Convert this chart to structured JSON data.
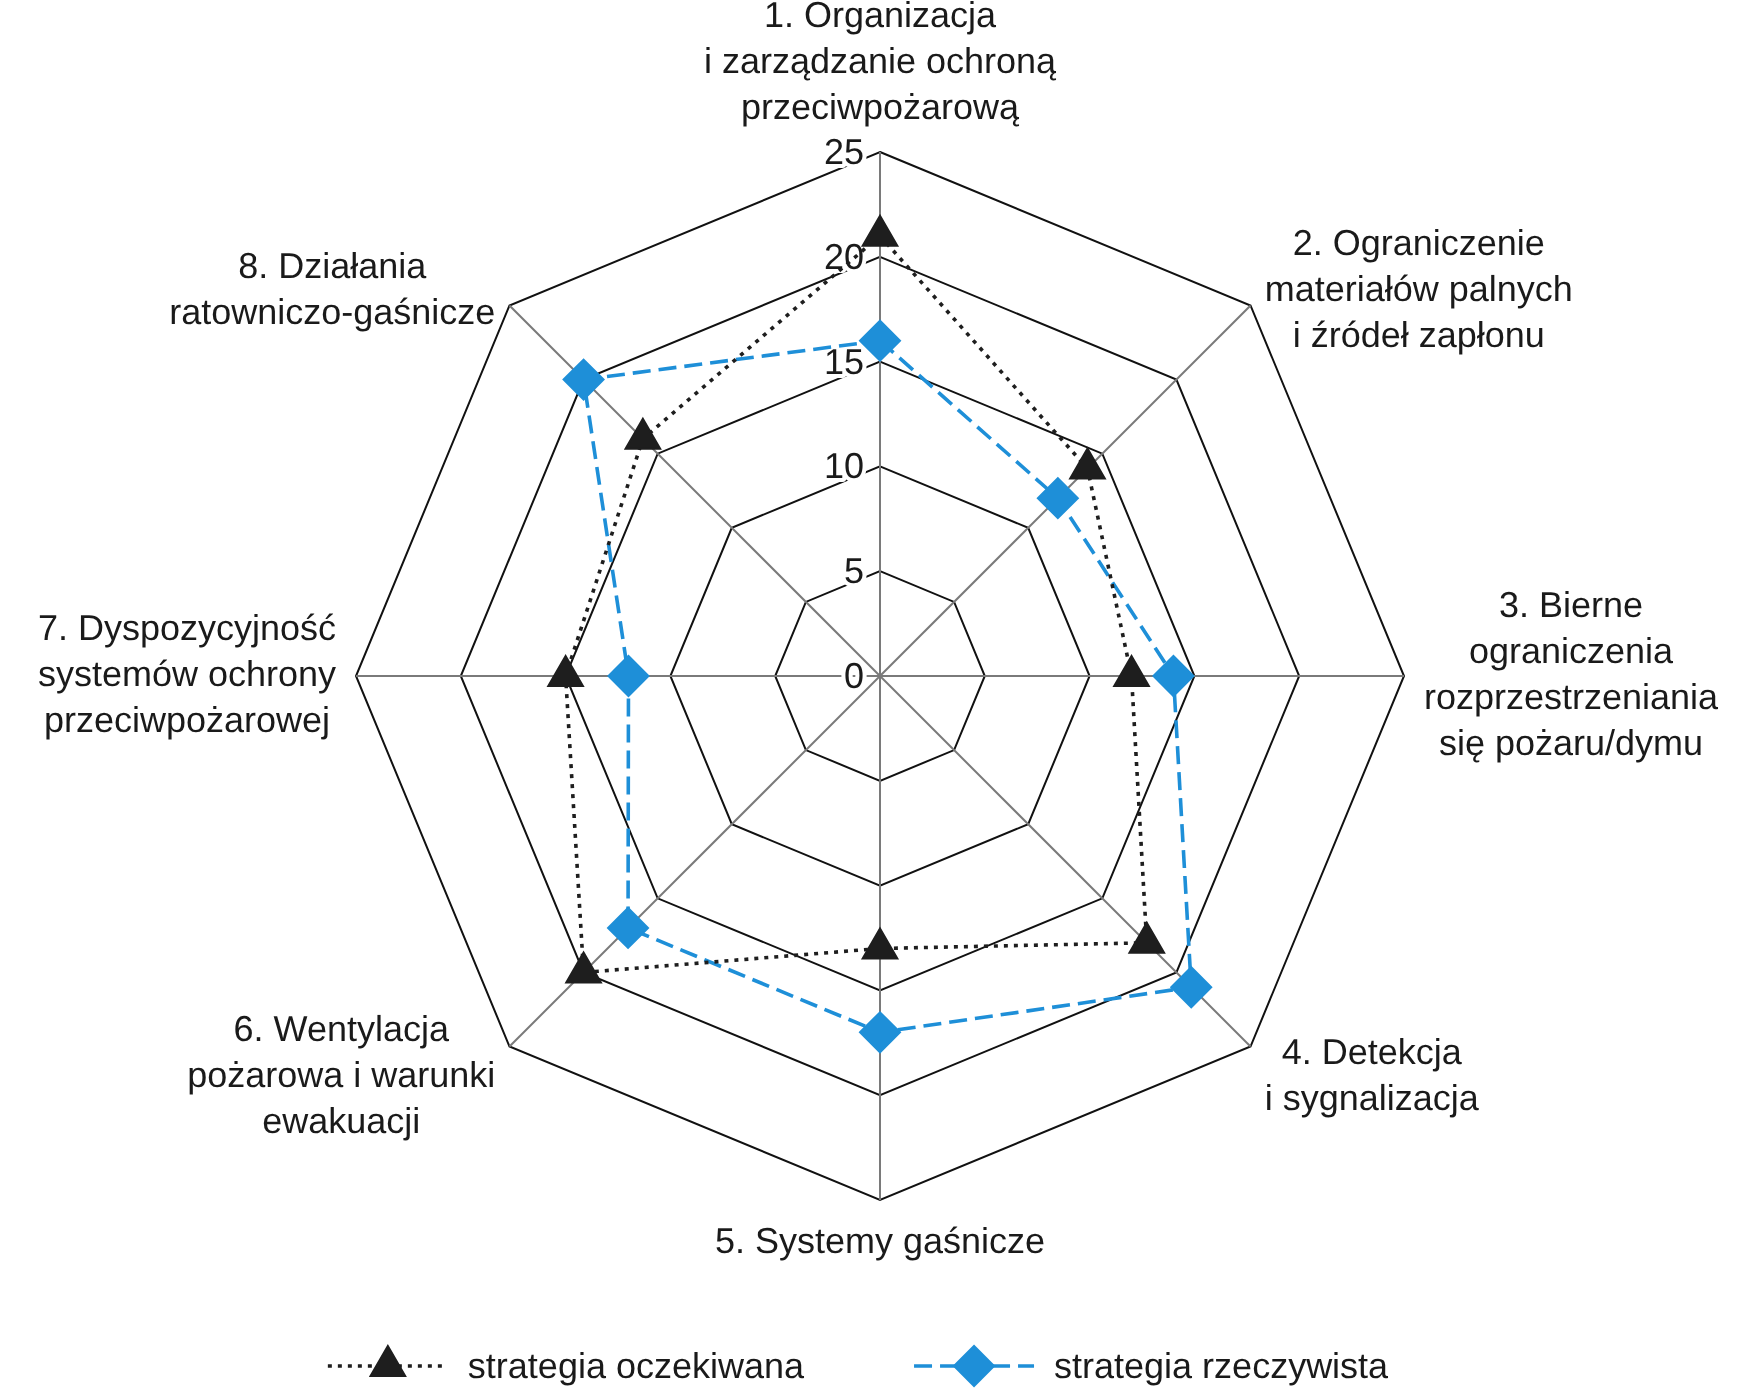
{
  "chart_data": {
    "type": "radar",
    "categories": [
      "1. Organizacja\ni zarządzanie ochroną\nprzeciwpożarową",
      "2. Ograniczenie\nmateriałów palnych\ni źródeł zapłonu",
      "3. Bierne\nograniczenia\nrozprzestrzeniania\nsię pożaru/dymu",
      "4. Detekcja\ni sygnalizacja",
      "5. Systemy gaśnicze",
      "6. Wentylacja\npożarowa i warunki\newakuacji",
      "7. Dyspozycyjność\nsystemów ochrony\nprzeciwpożarowej",
      "8. Działania\nratowniczo-gaśnicze"
    ],
    "series": [
      {
        "name": "strategia oczekiwana",
        "color": "#1e1e1e",
        "values": [
          21,
          14,
          12,
          18,
          13,
          20,
          15,
          16
        ],
        "marker": "triangle",
        "line_style": "dotted"
      },
      {
        "name": "strategia rzeczywista",
        "color": "#1e8fd8",
        "values": [
          16,
          12,
          14,
          21,
          17,
          17,
          12,
          20
        ],
        "marker": "diamond",
        "line_style": "dashed"
      }
    ],
    "ylim": [
      0,
      25
    ],
    "yticks": [
      0,
      5,
      10,
      15,
      20,
      25
    ],
    "grid": true,
    "legend": "bottom"
  }
}
